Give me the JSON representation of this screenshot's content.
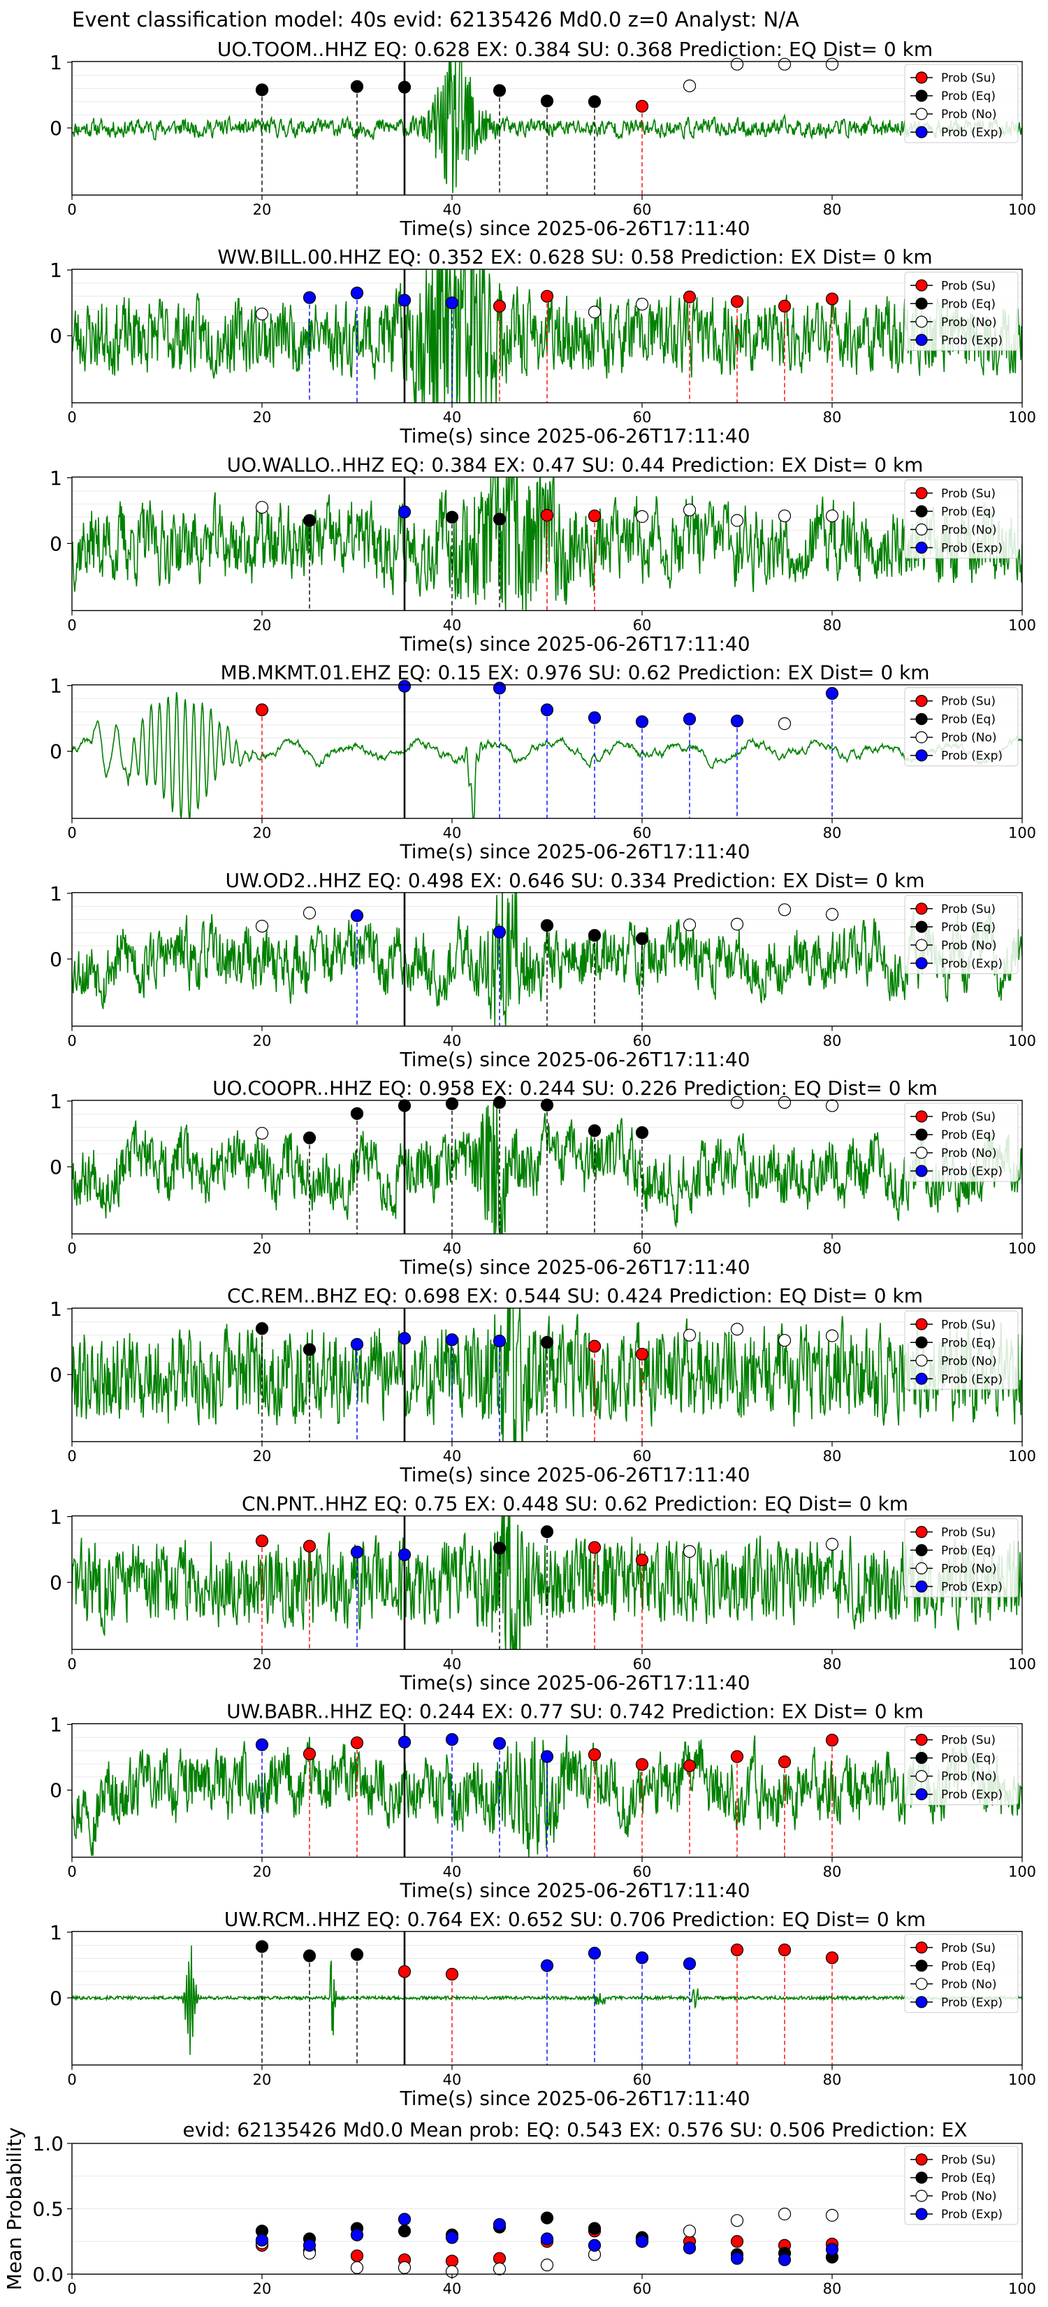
{
  "header": "Event classification model: 40s evid: 62135426 Md0.0 z=0 Analyst: N/A",
  "legend_labels": [
    "Prob (Su)",
    "Prob (Eq)",
    "Prob (No)",
    "Prob (Exp)"
  ],
  "colors": {
    "su": "#ff0000",
    "eq": "#000000",
    "no": "#ffffff",
    "exp": "#0000ff",
    "trace": "#008000",
    "vline_su": "#ff0000",
    "vline_eq": "#000000",
    "vline_exp": "#0000ff",
    "origin": "#000000"
  },
  "chart_data": [
    {
      "type": "line",
      "title": "UO.TOOM..HHZ   EQ: 0.628  EX: 0.384  SU: 0.368   Prediction: EQ    Dist= 0 km",
      "xlabel": "Time(s) since 2025-06-26T17:11:40",
      "xlim": [
        0,
        100
      ],
      "xticks": [
        0,
        20,
        40,
        60,
        80,
        100
      ],
      "yticks": [
        0,
        1
      ],
      "origin_line": 35,
      "trace": {
        "style": "event",
        "amp": 0.06,
        "burst_center": 40.5,
        "burst_amp": 1.1,
        "burst_width": 1.6,
        "period": 0.6,
        "seed": 11
      },
      "windows": [
        {
          "t": 20,
          "cls": "eq",
          "p": 0.58
        },
        {
          "t": 30,
          "cls": "eq",
          "p": 0.63
        },
        {
          "t": 35,
          "cls": "eq",
          "p": 0.62
        },
        {
          "t": 45,
          "cls": "eq",
          "p": 0.57
        },
        {
          "t": 50,
          "cls": "eq",
          "p": 0.41
        },
        {
          "t": 55,
          "cls": "eq",
          "p": 0.4
        },
        {
          "t": 60,
          "cls": "su",
          "p": 0.33
        },
        {
          "t": 65,
          "cls": "no",
          "p": 0.64
        },
        {
          "t": 70,
          "cls": "no",
          "p": 0.97
        },
        {
          "t": 75,
          "cls": "no",
          "p": 0.97
        },
        {
          "t": 80,
          "cls": "no",
          "p": 0.97
        }
      ]
    },
    {
      "type": "line",
      "title": "WW.BILL.00.HHZ   EQ: 0.352  EX: 0.628  SU: 0.58   Prediction: EX    Dist= 0 km",
      "xlabel": "Time(s) since 2025-06-26T17:11:40",
      "xlim": [
        0,
        100
      ],
      "xticks": [
        0,
        20,
        40,
        60,
        80,
        100
      ],
      "yticks": [
        0,
        1
      ],
      "origin_line": 35,
      "trace": {
        "style": "event",
        "amp": 0.22,
        "burst_center": 40.5,
        "burst_amp": 1.3,
        "burst_width": 3.0,
        "period": 0.5,
        "seed": 23
      },
      "windows": [
        {
          "t": 20,
          "cls": "no",
          "p": 0.33
        },
        {
          "t": 25,
          "cls": "exp",
          "p": 0.58
        },
        {
          "t": 30,
          "cls": "exp",
          "p": 0.65
        },
        {
          "t": 35,
          "cls": "exp",
          "p": 0.54
        },
        {
          "t": 40,
          "cls": "exp",
          "p": 0.5
        },
        {
          "t": 45,
          "cls": "su",
          "p": 0.45
        },
        {
          "t": 50,
          "cls": "su",
          "p": 0.6
        },
        {
          "t": 55,
          "cls": "no",
          "p": 0.36
        },
        {
          "t": 60,
          "cls": "no",
          "p": 0.48
        },
        {
          "t": 65,
          "cls": "su",
          "p": 0.59
        },
        {
          "t": 70,
          "cls": "su",
          "p": 0.52
        },
        {
          "t": 75,
          "cls": "su",
          "p": 0.45
        },
        {
          "t": 80,
          "cls": "su",
          "p": 0.56
        }
      ]
    },
    {
      "type": "line",
      "title": "UO.WALLO..HHZ   EQ: 0.384  EX: 0.47  SU: 0.44   Prediction: EX    Dist= 0 km",
      "xlabel": "Time(s) since 2025-06-26T17:11:40",
      "xlim": [
        0,
        100
      ],
      "xticks": [
        0,
        20,
        40,
        60,
        80,
        100
      ],
      "yticks": [
        0,
        1
      ],
      "origin_line": 35,
      "trace": {
        "style": "event",
        "amp": 0.3,
        "burst_center": 46.5,
        "burst_amp": 0.8,
        "burst_width": 4.0,
        "period": 0.8,
        "seed": 37
      },
      "windows": [
        {
          "t": 20,
          "cls": "no",
          "p": 0.55
        },
        {
          "t": 25,
          "cls": "eq",
          "p": 0.35
        },
        {
          "t": 35,
          "cls": "exp",
          "p": 0.48
        },
        {
          "t": 40,
          "cls": "eq",
          "p": 0.4
        },
        {
          "t": 45,
          "cls": "eq",
          "p": 0.37
        },
        {
          "t": 50,
          "cls": "su",
          "p": 0.43
        },
        {
          "t": 55,
          "cls": "su",
          "p": 0.42
        },
        {
          "t": 60,
          "cls": "no",
          "p": 0.41
        },
        {
          "t": 65,
          "cls": "no",
          "p": 0.51
        },
        {
          "t": 70,
          "cls": "no",
          "p": 0.35
        },
        {
          "t": 75,
          "cls": "no",
          "p": 0.42
        },
        {
          "t": 80,
          "cls": "no",
          "p": 0.42
        }
      ]
    },
    {
      "type": "line",
      "title": "MB.MKMT.01.EHZ   EQ: 0.15  EX: 0.976  SU: 0.62   Prediction: EX    Dist= 0 km",
      "xlabel": "Time(s) since 2025-06-26T17:11:40",
      "xlim": [
        0,
        100
      ],
      "xticks": [
        0,
        20,
        40,
        60,
        80,
        100
      ],
      "yticks": [
        0,
        1
      ],
      "origin_line": 35,
      "trace": {
        "style": "resonant",
        "amp": 0.05,
        "burst_center": 11.5,
        "burst_amp": 0.95,
        "burst_width": 3.2,
        "period": 0.9,
        "spike_t": 42.2,
        "spike_amp": -1.0,
        "seed": 41
      },
      "windows": [
        {
          "t": 20,
          "cls": "su",
          "p": 0.63
        },
        {
          "t": 35,
          "cls": "exp",
          "p": 0.99
        },
        {
          "t": 45,
          "cls": "exp",
          "p": 0.96
        },
        {
          "t": 50,
          "cls": "exp",
          "p": 0.63
        },
        {
          "t": 55,
          "cls": "exp",
          "p": 0.51
        },
        {
          "t": 60,
          "cls": "exp",
          "p": 0.45
        },
        {
          "t": 65,
          "cls": "exp",
          "p": 0.49
        },
        {
          "t": 70,
          "cls": "exp",
          "p": 0.46
        },
        {
          "t": 75,
          "cls": "no",
          "p": 0.42
        },
        {
          "t": 80,
          "cls": "exp",
          "p": 0.88
        }
      ]
    },
    {
      "type": "line",
      "title": "UW.OD2..HHZ   EQ: 0.498  EX: 0.646  SU: 0.334   Prediction: EX    Dist= 0 km",
      "xlabel": "Time(s) since 2025-06-26T17:11:40",
      "xlim": [
        0,
        100
      ],
      "xticks": [
        0,
        20,
        40,
        60,
        80,
        100
      ],
      "yticks": [
        0,
        1
      ],
      "origin_line": 35,
      "trace": {
        "style": "event",
        "amp": 0.35,
        "burst_center": 45.5,
        "burst_amp": 0.9,
        "burst_width": 1.2,
        "period": 1.4,
        "seed": 53
      },
      "windows": [
        {
          "t": 20,
          "cls": "no",
          "p": 0.5
        },
        {
          "t": 25,
          "cls": "no",
          "p": 0.7
        },
        {
          "t": 30,
          "cls": "exp",
          "p": 0.66
        },
        {
          "t": 45,
          "cls": "exp",
          "p": 0.41
        },
        {
          "t": 50,
          "cls": "eq",
          "p": 0.51
        },
        {
          "t": 55,
          "cls": "eq",
          "p": 0.36
        },
        {
          "t": 60,
          "cls": "eq",
          "p": 0.31
        },
        {
          "t": 65,
          "cls": "no",
          "p": 0.52
        },
        {
          "t": 70,
          "cls": "no",
          "p": 0.53
        },
        {
          "t": 75,
          "cls": "no",
          "p": 0.75
        },
        {
          "t": 80,
          "cls": "no",
          "p": 0.68
        }
      ]
    },
    {
      "type": "line",
      "title": "UO.COOPR..HHZ   EQ: 0.958  EX: 0.244  SU: 0.226   Prediction: EQ    Dist= 0 km",
      "xlabel": "Time(s) since 2025-06-26T17:11:40",
      "xlim": [
        0,
        100
      ],
      "xticks": [
        0,
        20,
        40,
        60,
        80,
        100
      ],
      "yticks": [
        0,
        1
      ],
      "origin_line": 35,
      "trace": {
        "style": "event",
        "amp": 0.4,
        "burst_center": 44.5,
        "burst_amp": 0.8,
        "burst_width": 1.0,
        "period": 2.0,
        "seed": 67
      },
      "windows": [
        {
          "t": 20,
          "cls": "no",
          "p": 0.51
        },
        {
          "t": 25,
          "cls": "eq",
          "p": 0.44
        },
        {
          "t": 30,
          "cls": "eq",
          "p": 0.81
        },
        {
          "t": 35,
          "cls": "eq",
          "p": 0.93
        },
        {
          "t": 40,
          "cls": "eq",
          "p": 0.96
        },
        {
          "t": 45,
          "cls": "eq",
          "p": 0.98
        },
        {
          "t": 50,
          "cls": "eq",
          "p": 0.94
        },
        {
          "t": 55,
          "cls": "eq",
          "p": 0.55
        },
        {
          "t": 60,
          "cls": "eq",
          "p": 0.52
        },
        {
          "t": 70,
          "cls": "no",
          "p": 0.98
        },
        {
          "t": 75,
          "cls": "no",
          "p": 0.98
        },
        {
          "t": 80,
          "cls": "no",
          "p": 0.93
        }
      ]
    },
    {
      "type": "line",
      "title": "CC.REM..BHZ   EQ: 0.698  EX: 0.544  SU: 0.424   Prediction: EQ    Dist= 0 km",
      "xlabel": "Time(s) since 2025-06-26T17:11:40",
      "xlim": [
        0,
        100
      ],
      "xticks": [
        0,
        20,
        40,
        60,
        80,
        100
      ],
      "yticks": [
        0,
        1
      ],
      "origin_line": 35,
      "trace": {
        "style": "event",
        "amp": 0.28,
        "burst_center": 46.0,
        "burst_amp": 0.9,
        "burst_width": 1.5,
        "period": 0.5,
        "seed": 79
      },
      "windows": [
        {
          "t": 20,
          "cls": "eq",
          "p": 0.7
        },
        {
          "t": 25,
          "cls": "eq",
          "p": 0.38
        },
        {
          "t": 30,
          "cls": "exp",
          "p": 0.46
        },
        {
          "t": 35,
          "cls": "exp",
          "p": 0.55
        },
        {
          "t": 40,
          "cls": "exp",
          "p": 0.53
        },
        {
          "t": 45,
          "cls": "exp",
          "p": 0.51
        },
        {
          "t": 50,
          "cls": "eq",
          "p": 0.49
        },
        {
          "t": 55,
          "cls": "su",
          "p": 0.43
        },
        {
          "t": 60,
          "cls": "su",
          "p": 0.31
        },
        {
          "t": 65,
          "cls": "no",
          "p": 0.6
        },
        {
          "t": 70,
          "cls": "no",
          "p": 0.69
        },
        {
          "t": 75,
          "cls": "no",
          "p": 0.52
        },
        {
          "t": 80,
          "cls": "no",
          "p": 0.59
        }
      ]
    },
    {
      "type": "line",
      "title": "CN.PNT..HHZ   EQ: 0.75  EX: 0.448  SU: 0.62   Prediction: EQ    Dist= 0 km",
      "xlabel": "Time(s) since 2025-06-26T17:11:40",
      "xlim": [
        0,
        100
      ],
      "xticks": [
        0,
        20,
        40,
        60,
        80,
        100
      ],
      "yticks": [
        0,
        1
      ],
      "origin_line": 35,
      "trace": {
        "style": "event",
        "amp": 0.22,
        "burst_center": 46.0,
        "burst_amp": 0.95,
        "burst_width": 1.2,
        "period": 0.4,
        "seed": 83
      },
      "windows": [
        {
          "t": 20,
          "cls": "su",
          "p": 0.63
        },
        {
          "t": 25,
          "cls": "su",
          "p": 0.55
        },
        {
          "t": 30,
          "cls": "exp",
          "p": 0.46
        },
        {
          "t": 35,
          "cls": "exp",
          "p": 0.42
        },
        {
          "t": 45,
          "cls": "eq",
          "p": 0.52
        },
        {
          "t": 50,
          "cls": "eq",
          "p": 0.77
        },
        {
          "t": 55,
          "cls": "su",
          "p": 0.53
        },
        {
          "t": 60,
          "cls": "su",
          "p": 0.34
        },
        {
          "t": 65,
          "cls": "no",
          "p": 0.47
        },
        {
          "t": 80,
          "cls": "no",
          "p": 0.58
        }
      ]
    },
    {
      "type": "line",
      "title": "UW.BABR..HHZ   EQ: 0.244  EX: 0.77  SU: 0.742   Prediction: EX    Dist= 0 km",
      "xlabel": "Time(s) since 2025-06-26T17:11:40",
      "xlim": [
        0,
        100
      ],
      "xticks": [
        0,
        20,
        40,
        60,
        80,
        100
      ],
      "yticks": [
        0,
        1
      ],
      "origin_line": 35,
      "trace": {
        "style": "event",
        "amp": 0.45,
        "burst_center": 48.5,
        "burst_amp": 0.6,
        "burst_width": 2.0,
        "period": 2.2,
        "seed": 97
      },
      "windows": [
        {
          "t": 20,
          "cls": "exp",
          "p": 0.69
        },
        {
          "t": 25,
          "cls": "su",
          "p": 0.55
        },
        {
          "t": 30,
          "cls": "su",
          "p": 0.72
        },
        {
          "t": 35,
          "cls": "exp",
          "p": 0.73
        },
        {
          "t": 40,
          "cls": "exp",
          "p": 0.77
        },
        {
          "t": 45,
          "cls": "exp",
          "p": 0.71
        },
        {
          "t": 50,
          "cls": "exp",
          "p": 0.51
        },
        {
          "t": 55,
          "cls": "su",
          "p": 0.54
        },
        {
          "t": 60,
          "cls": "su",
          "p": 0.39
        },
        {
          "t": 65,
          "cls": "su",
          "p": 0.37
        },
        {
          "t": 70,
          "cls": "su",
          "p": 0.51
        },
        {
          "t": 75,
          "cls": "su",
          "p": 0.43
        },
        {
          "t": 80,
          "cls": "su",
          "p": 0.76
        }
      ]
    },
    {
      "type": "line",
      "title": "UW.RCM..HHZ   EQ: 0.764  EX: 0.652  SU: 0.706   Prediction: EQ    Dist= 0 km",
      "xlabel": "Time(s) since 2025-06-26T17:11:40",
      "xlim": [
        0,
        100
      ],
      "xticks": [
        0,
        20,
        40,
        60,
        80,
        100
      ],
      "yticks": [
        0,
        1
      ],
      "origin_line": 35,
      "trace": {
        "style": "quiet",
        "amp": 0.025,
        "burst_center": 12.5,
        "burst_amp": 1.0,
        "burst_width": 0.7,
        "period": 0.3,
        "seed": 101
      },
      "windows": [
        {
          "t": 20,
          "cls": "eq",
          "p": 0.78
        },
        {
          "t": 25,
          "cls": "eq",
          "p": 0.64
        },
        {
          "t": 30,
          "cls": "eq",
          "p": 0.66
        },
        {
          "t": 35,
          "cls": "su",
          "p": 0.4
        },
        {
          "t": 40,
          "cls": "su",
          "p": 0.36
        },
        {
          "t": 50,
          "cls": "exp",
          "p": 0.49
        },
        {
          "t": 55,
          "cls": "exp",
          "p": 0.68
        },
        {
          "t": 60,
          "cls": "exp",
          "p": 0.61
        },
        {
          "t": 65,
          "cls": "exp",
          "p": 0.52
        },
        {
          "t": 70,
          "cls": "su",
          "p": 0.73
        },
        {
          "t": 75,
          "cls": "su",
          "p": 0.73
        },
        {
          "t": 80,
          "cls": "su",
          "p": 0.61
        }
      ]
    },
    {
      "type": "scatter",
      "title": "evid: 62135426  Md0.0   Mean prob:   EQ: 0.543  EX: 0.576  SU: 0.506   Prediction: EX",
      "ylabel": "Mean Probability",
      "xlim": [
        0,
        100
      ],
      "ylim": [
        0,
        1
      ],
      "xticks": [
        0,
        20,
        40,
        60,
        80,
        100
      ],
      "yticks": [
        0.0,
        0.5,
        1.0
      ],
      "ytick_labels": [
        "0.0",
        "0.5",
        "1.0"
      ],
      "series": [
        {
          "name": "Prob (Su)",
          "cls": "su",
          "x": [
            20,
            25,
            30,
            35,
            40,
            45,
            50,
            55,
            60,
            65,
            70,
            75,
            80
          ],
          "y": [
            0.22,
            0.18,
            0.14,
            0.11,
            0.1,
            0.12,
            0.25,
            0.33,
            0.27,
            0.25,
            0.25,
            0.22,
            0.23
          ]
        },
        {
          "name": "Prob (Eq)",
          "cls": "eq",
          "x": [
            20,
            25,
            30,
            35,
            40,
            45,
            50,
            55,
            60,
            65,
            70,
            75,
            80
          ],
          "y": [
            0.33,
            0.27,
            0.35,
            0.33,
            0.3,
            0.36,
            0.43,
            0.35,
            0.28,
            0.2,
            0.15,
            0.16,
            0.13
          ]
        },
        {
          "name": "Prob (No)",
          "cls": "no",
          "x": [
            20,
            25,
            30,
            35,
            40,
            45,
            50,
            55,
            60,
            65,
            70,
            75,
            80
          ],
          "y": [
            0.24,
            0.16,
            0.05,
            0.05,
            0.02,
            0.04,
            0.07,
            0.15,
            0.25,
            0.33,
            0.41,
            0.46,
            0.45
          ]
        },
        {
          "name": "Prob (Exp)",
          "cls": "exp",
          "x": [
            20,
            25,
            30,
            35,
            40,
            45,
            50,
            55,
            60,
            65,
            70,
            75,
            80
          ],
          "y": [
            0.26,
            0.22,
            0.3,
            0.42,
            0.28,
            0.38,
            0.27,
            0.22,
            0.25,
            0.2,
            0.12,
            0.11,
            0.19
          ]
        }
      ]
    }
  ]
}
